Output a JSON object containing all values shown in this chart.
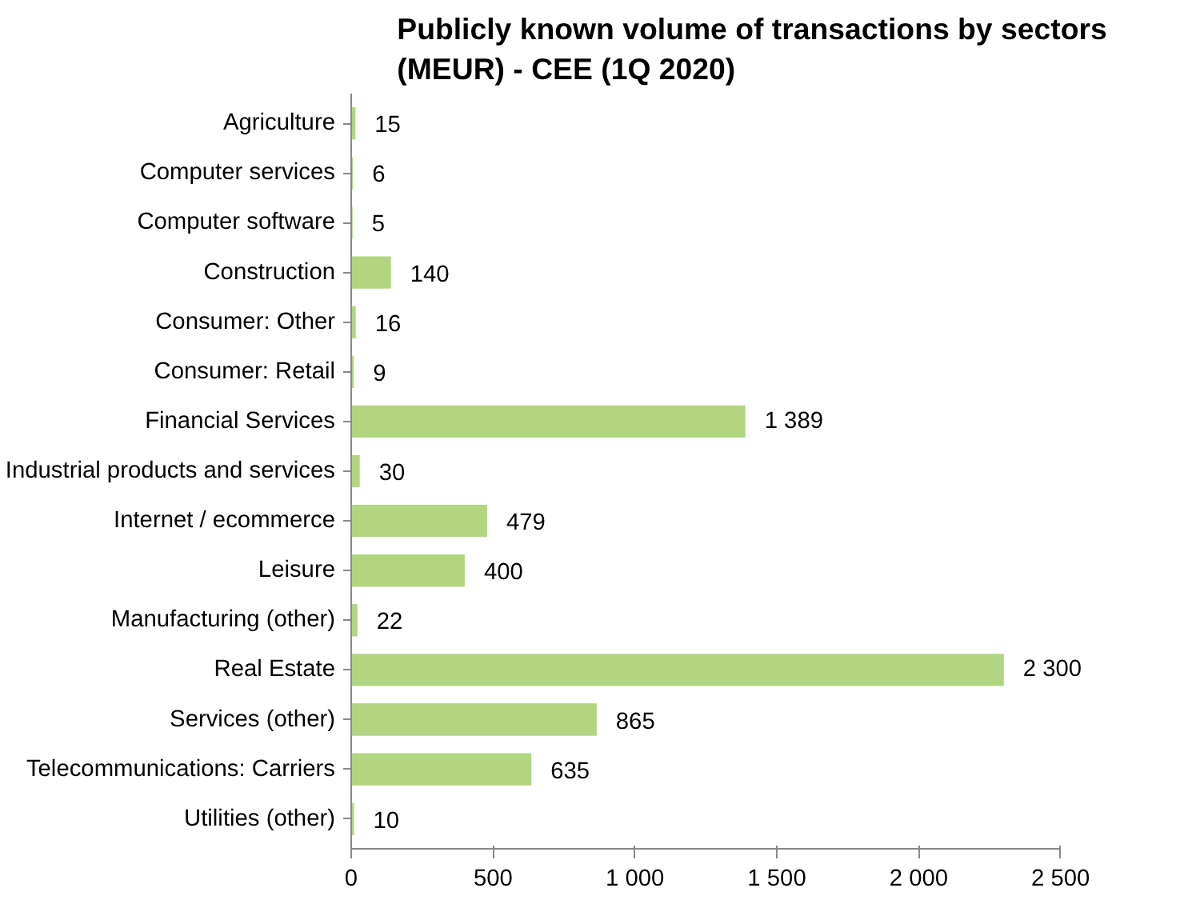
{
  "chart_data": {
    "type": "bar",
    "orientation": "horizontal",
    "title": "Publicly known volume of transactions by sectors\n(MEUR) - CEE (1Q 2020)",
    "categories": [
      "Agriculture",
      "Computer services",
      "Computer software",
      "Construction",
      "Consumer: Other",
      "Consumer: Retail",
      "Financial Services",
      "Industrial products and services",
      "Internet / ecommerce",
      "Leisure",
      "Manufacturing (other)",
      "Real Estate",
      "Services (other)",
      "Telecommunications: Carriers",
      "Utilities (other)"
    ],
    "values": [
      15,
      6,
      5,
      140,
      16,
      9,
      1389,
      30,
      479,
      400,
      22,
      2300,
      865,
      635,
      10
    ],
    "value_labels": [
      "15",
      "6",
      "5",
      "140",
      "16",
      "9",
      "1 389",
      "30",
      "479",
      "400",
      "22",
      "2 300",
      "865",
      "635",
      "10"
    ],
    "color": "#b1d581",
    "xlim": [
      0,
      2500
    ],
    "xticks": [
      0,
      500,
      {
        "value": 1000,
        "label": "1 000"
      },
      {
        "value": 1500,
        "label": "1 500"
      },
      {
        "value": 2000,
        "label": "2 000"
      },
      {
        "value": 2500,
        "label": "2 500"
      }
    ],
    "grid": false
  }
}
